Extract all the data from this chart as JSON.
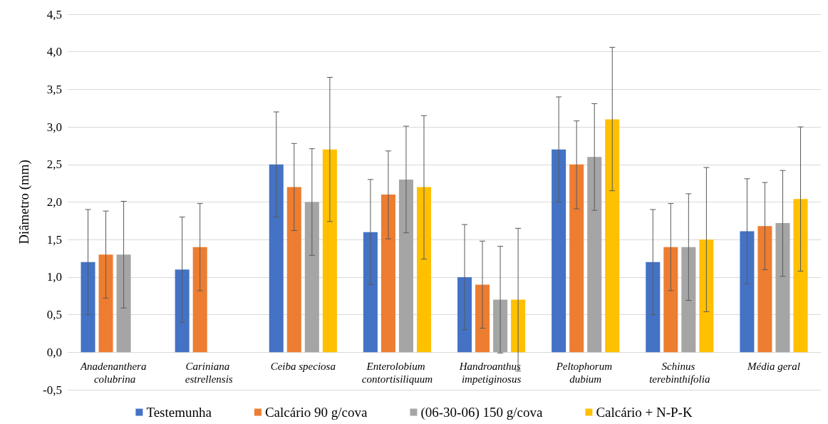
{
  "chart_data": {
    "type": "bar",
    "ylabel": "Diâmetro (mm)",
    "categories": [
      "Anadenanthera colubrina",
      "Cariniana estrellensis",
      "Ceiba speciosa",
      "Enterolobium contortisiliquum",
      "Handroanthus impetiginosus",
      "Peltophorum dubium",
      "Schinus terebinthifolia",
      "Média geral"
    ],
    "series": [
      {
        "name": "Testemunha",
        "color": "#4472c4",
        "values": [
          1.2,
          1.1,
          2.5,
          1.6,
          1.0,
          2.7,
          1.2,
          1.61
        ],
        "errors": [
          [
            0.5,
            1.9
          ],
          [
            0.4,
            1.8
          ],
          [
            1.8,
            3.2
          ],
          [
            0.9,
            2.3
          ],
          [
            0.3,
            1.7
          ],
          [
            2.0,
            3.4
          ],
          [
            0.5,
            1.9
          ],
          [
            0.91,
            2.31
          ]
        ]
      },
      {
        "name": "Calcário 90 g/cova",
        "color": "#ed7d31",
        "values": [
          1.3,
          1.4,
          2.2,
          2.1,
          0.9,
          2.5,
          1.4,
          1.68
        ],
        "errors": [
          [
            0.72,
            1.88
          ],
          [
            0.82,
            1.98
          ],
          [
            1.62,
            2.78
          ],
          [
            1.51,
            2.68
          ],
          [
            0.32,
            1.48
          ],
          [
            1.91,
            3.08
          ],
          [
            0.82,
            1.98
          ],
          [
            1.1,
            2.26
          ]
        ]
      },
      {
        "name": "(06-30-06) 150 g/cova",
        "color": "#a5a5a5",
        "values": [
          1.3,
          null,
          2.0,
          2.3,
          0.7,
          2.6,
          1.4,
          1.72
        ],
        "errors": [
          [
            0.59,
            2.01
          ],
          null,
          [
            1.29,
            2.71
          ],
          [
            1.59,
            3.01
          ],
          [
            -0.01,
            1.41
          ],
          [
            1.89,
            3.31
          ],
          [
            0.69,
            2.11
          ],
          [
            1.01,
            2.42
          ]
        ]
      },
      {
        "name": "Calcário + N-P-K",
        "color": "#ffc000",
        "values": [
          null,
          null,
          2.7,
          2.2,
          0.7,
          3.1,
          1.5,
          2.04
        ],
        "errors": [
          null,
          null,
          [
            1.74,
            3.66
          ],
          [
            1.24,
            3.15
          ],
          [
            -0.25,
            1.65
          ],
          [
            2.15,
            4.06
          ],
          [
            0.54,
            2.46
          ],
          [
            1.08,
            3.0
          ]
        ]
      }
    ],
    "ylim": [
      -0.5,
      4.5
    ],
    "yticks": [
      {
        "value": -0.5,
        "label": "-0,5"
      },
      {
        "value": 0,
        "label": "0,0"
      },
      {
        "value": 0.5,
        "label": "0,5"
      },
      {
        "value": 1,
        "label": "1,0"
      },
      {
        "value": 1.5,
        "label": "1,5"
      },
      {
        "value": 2,
        "label": "2,0"
      },
      {
        "value": 2.5,
        "label": "2,5"
      },
      {
        "value": 3,
        "label": "3,0"
      },
      {
        "value": 3.5,
        "label": "3,5"
      },
      {
        "value": 4,
        "label": "4,0"
      },
      {
        "value": 4.5,
        "label": "4,5"
      }
    ],
    "grid": "y",
    "legend": "bottom"
  }
}
